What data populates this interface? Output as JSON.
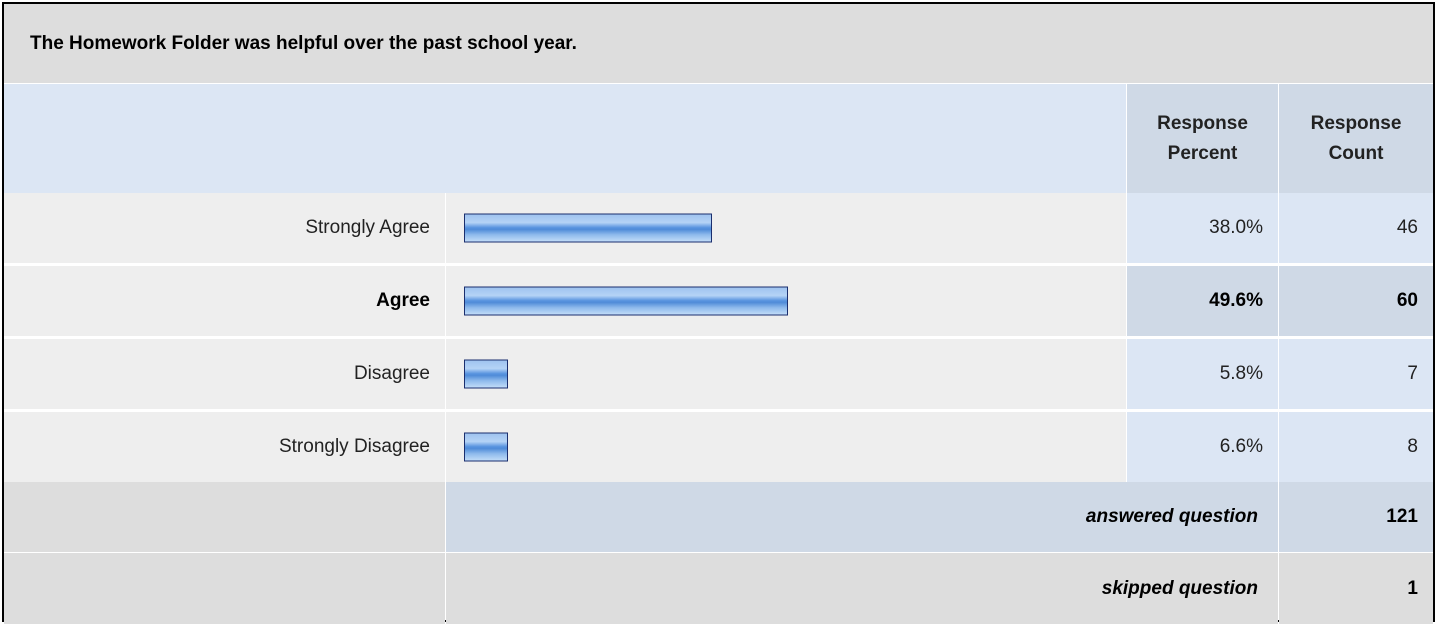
{
  "title": "The Homework Folder was helpful over the past school year.",
  "headers": {
    "response_percent": "Response\nPercent",
    "response_count": "Response\nCount"
  },
  "rows": [
    {
      "label": "Strongly Agree",
      "percent": "38.0%",
      "count": "46",
      "highlight": false
    },
    {
      "label": "Agree",
      "percent": "49.6%",
      "count": "60",
      "highlight": true
    },
    {
      "label": "Disagree",
      "percent": "5.8%",
      "count": "7",
      "highlight": false
    },
    {
      "label": "Strongly Disagree",
      "percent": "6.6%",
      "count": "8",
      "highlight": false
    }
  ],
  "summary": {
    "answered_label": "answered question",
    "answered_value": "121",
    "skipped_label": "skipped question",
    "skipped_value": "1"
  },
  "colors": {
    "bar_border": "#1a2e6e",
    "bar_fill": "#5b96e0",
    "row_background": "#eeeeee",
    "value_background": "#dce6f4",
    "highlight_background": "#cfd9e6"
  },
  "chart_data": {
    "type": "bar",
    "orientation": "horizontal",
    "title": "The Homework Folder was helpful over the past school year.",
    "categories": [
      "Strongly Agree",
      "Agree",
      "Disagree",
      "Strongly Disagree"
    ],
    "values": [
      38.0,
      49.6,
      5.8,
      6.6
    ],
    "counts": [
      46,
      60,
      7,
      8
    ],
    "xlim": [
      0,
      100
    ],
    "grid": false
  }
}
